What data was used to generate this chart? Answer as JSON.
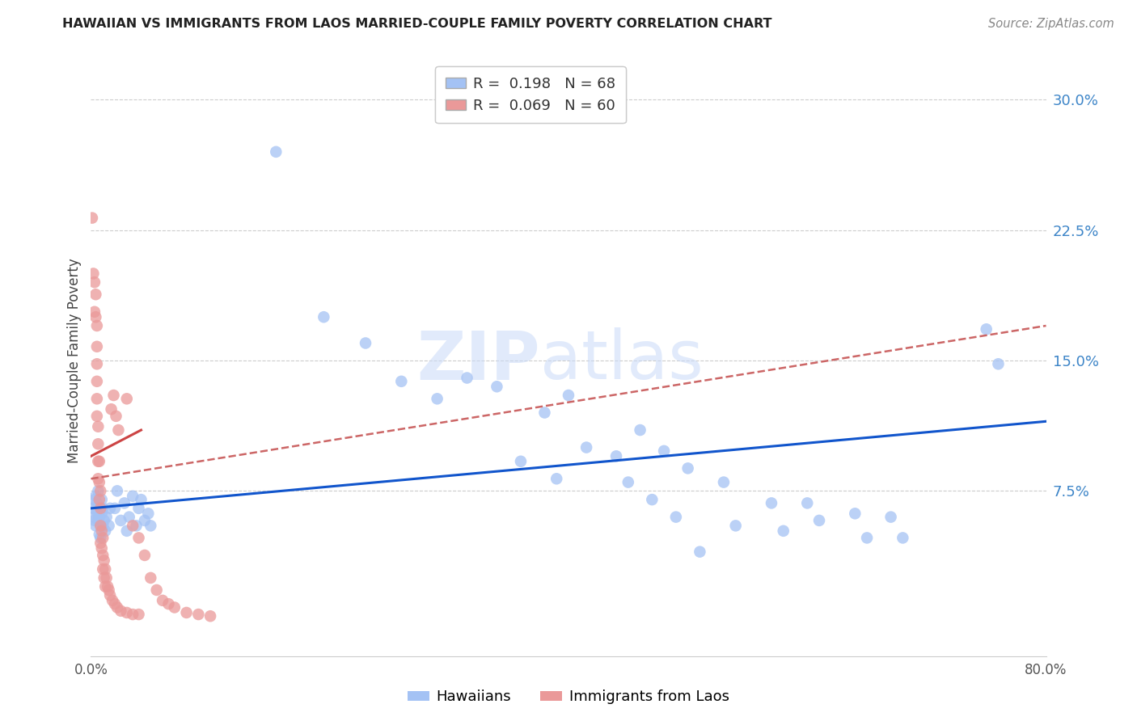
{
  "title": "HAWAIIAN VS IMMIGRANTS FROM LAOS MARRIED-COUPLE FAMILY POVERTY CORRELATION CHART",
  "source": "Source: ZipAtlas.com",
  "ylabel": "Married-Couple Family Poverty",
  "ytick_labels": [
    "7.5%",
    "15.0%",
    "22.5%",
    "30.0%"
  ],
  "ytick_values": [
    0.075,
    0.15,
    0.225,
    0.3
  ],
  "xmin": 0.0,
  "xmax": 0.8,
  "ymin": -0.02,
  "ymax": 0.32,
  "hawaiian_color": "#a4c2f4",
  "laos_color": "#ea9999",
  "trendline_hawaiian_color": "#1155cc",
  "trendline_laos_color": "#cc4444",
  "trendline_laos_dashed_color": "#cc6666",
  "watermark_color": "#c9daf8",
  "hawaiian_points": [
    [
      0.002,
      0.065
    ],
    [
      0.002,
      0.06
    ],
    [
      0.003,
      0.07
    ],
    [
      0.003,
      0.058
    ],
    [
      0.004,
      0.072
    ],
    [
      0.004,
      0.055
    ],
    [
      0.005,
      0.063
    ],
    [
      0.005,
      0.068
    ],
    [
      0.006,
      0.058
    ],
    [
      0.006,
      0.075
    ],
    [
      0.007,
      0.06
    ],
    [
      0.007,
      0.05
    ],
    [
      0.008,
      0.055
    ],
    [
      0.008,
      0.048
    ],
    [
      0.009,
      0.062
    ],
    [
      0.009,
      0.07
    ],
    [
      0.01,
      0.065
    ],
    [
      0.01,
      0.055
    ],
    [
      0.011,
      0.058
    ],
    [
      0.012,
      0.052
    ],
    [
      0.013,
      0.06
    ],
    [
      0.015,
      0.055
    ],
    [
      0.016,
      0.065
    ],
    [
      0.02,
      0.065
    ],
    [
      0.022,
      0.075
    ],
    [
      0.025,
      0.058
    ],
    [
      0.028,
      0.068
    ],
    [
      0.03,
      0.052
    ],
    [
      0.032,
      0.06
    ],
    [
      0.035,
      0.072
    ],
    [
      0.038,
      0.055
    ],
    [
      0.04,
      0.065
    ],
    [
      0.042,
      0.07
    ],
    [
      0.045,
      0.058
    ],
    [
      0.048,
      0.062
    ],
    [
      0.05,
      0.055
    ],
    [
      0.155,
      0.27
    ],
    [
      0.195,
      0.175
    ],
    [
      0.23,
      0.16
    ],
    [
      0.26,
      0.138
    ],
    [
      0.29,
      0.128
    ],
    [
      0.315,
      0.14
    ],
    [
      0.34,
      0.135
    ],
    [
      0.36,
      0.092
    ],
    [
      0.38,
      0.12
    ],
    [
      0.39,
      0.082
    ],
    [
      0.4,
      0.13
    ],
    [
      0.415,
      0.1
    ],
    [
      0.44,
      0.095
    ],
    [
      0.45,
      0.08
    ],
    [
      0.46,
      0.11
    ],
    [
      0.47,
      0.07
    ],
    [
      0.48,
      0.098
    ],
    [
      0.49,
      0.06
    ],
    [
      0.5,
      0.088
    ],
    [
      0.51,
      0.04
    ],
    [
      0.53,
      0.08
    ],
    [
      0.54,
      0.055
    ],
    [
      0.57,
      0.068
    ],
    [
      0.58,
      0.052
    ],
    [
      0.6,
      0.068
    ],
    [
      0.61,
      0.058
    ],
    [
      0.64,
      0.062
    ],
    [
      0.65,
      0.048
    ],
    [
      0.67,
      0.06
    ],
    [
      0.68,
      0.048
    ],
    [
      0.75,
      0.168
    ],
    [
      0.76,
      0.148
    ]
  ],
  "laos_points": [
    [
      0.001,
      0.232
    ],
    [
      0.002,
      0.2
    ],
    [
      0.003,
      0.195
    ],
    [
      0.003,
      0.178
    ],
    [
      0.004,
      0.188
    ],
    [
      0.004,
      0.175
    ],
    [
      0.005,
      0.17
    ],
    [
      0.005,
      0.158
    ],
    [
      0.005,
      0.148
    ],
    [
      0.005,
      0.138
    ],
    [
      0.005,
      0.128
    ],
    [
      0.005,
      0.118
    ],
    [
      0.006,
      0.112
    ],
    [
      0.006,
      0.102
    ],
    [
      0.006,
      0.092
    ],
    [
      0.006,
      0.082
    ],
    [
      0.007,
      0.092
    ],
    [
      0.007,
      0.08
    ],
    [
      0.007,
      0.07
    ],
    [
      0.008,
      0.075
    ],
    [
      0.008,
      0.065
    ],
    [
      0.008,
      0.055
    ],
    [
      0.008,
      0.045
    ],
    [
      0.009,
      0.052
    ],
    [
      0.009,
      0.042
    ],
    [
      0.01,
      0.048
    ],
    [
      0.01,
      0.038
    ],
    [
      0.01,
      0.03
    ],
    [
      0.011,
      0.035
    ],
    [
      0.011,
      0.025
    ],
    [
      0.012,
      0.03
    ],
    [
      0.012,
      0.02
    ],
    [
      0.013,
      0.025
    ],
    [
      0.014,
      0.02
    ],
    [
      0.015,
      0.018
    ],
    [
      0.016,
      0.015
    ],
    [
      0.018,
      0.012
    ],
    [
      0.02,
      0.01
    ],
    [
      0.022,
      0.008
    ],
    [
      0.025,
      0.006
    ],
    [
      0.03,
      0.005
    ],
    [
      0.035,
      0.004
    ],
    [
      0.04,
      0.004
    ],
    [
      0.017,
      0.122
    ],
    [
      0.019,
      0.13
    ],
    [
      0.021,
      0.118
    ],
    [
      0.023,
      0.11
    ],
    [
      0.03,
      0.128
    ],
    [
      0.035,
      0.055
    ],
    [
      0.04,
      0.048
    ],
    [
      0.045,
      0.038
    ],
    [
      0.05,
      0.025
    ],
    [
      0.055,
      0.018
    ],
    [
      0.06,
      0.012
    ],
    [
      0.065,
      0.01
    ],
    [
      0.07,
      0.008
    ],
    [
      0.08,
      0.005
    ],
    [
      0.09,
      0.004
    ],
    [
      0.1,
      0.003
    ]
  ]
}
